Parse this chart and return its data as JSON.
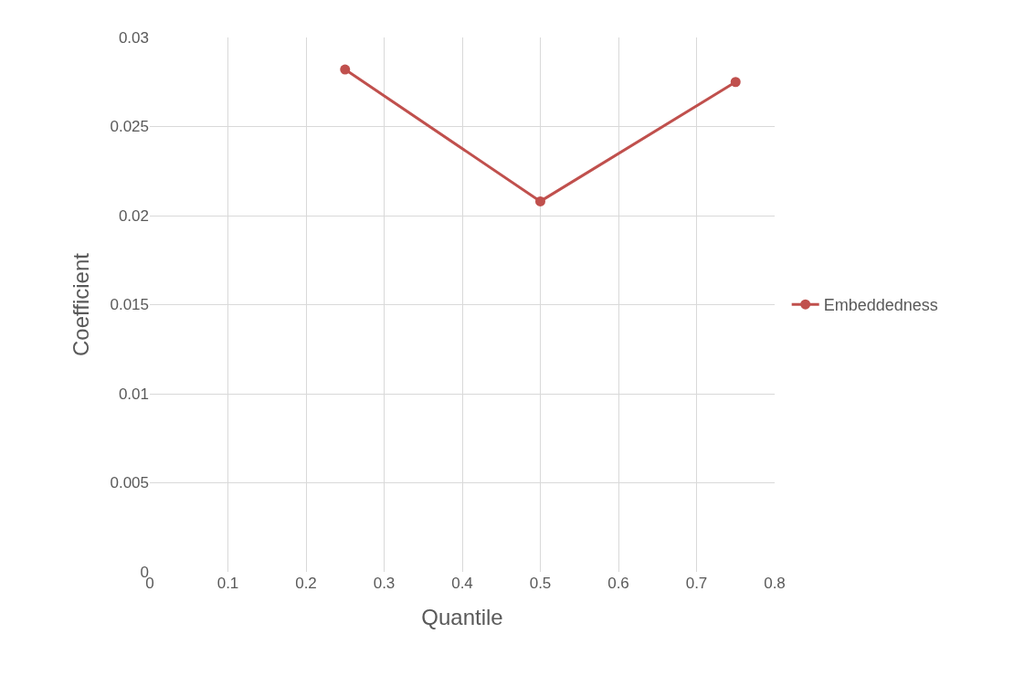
{
  "chart_data": {
    "type": "line",
    "xlabel": "Quantile",
    "ylabel": "Coefficient",
    "x": [
      0.25,
      0.5,
      0.75
    ],
    "series": [
      {
        "name": "Embeddedness",
        "color": "#c0504d",
        "values": [
          0.0282,
          0.0208,
          0.0275
        ]
      }
    ],
    "xlim": [
      0,
      0.8
    ],
    "xticks": [
      0,
      0.1,
      0.2,
      0.3,
      0.4,
      0.5,
      0.6,
      0.7,
      0.8
    ],
    "ylim": [
      0,
      0.03
    ],
    "yticks": [
      0,
      0.005,
      0.01,
      0.015,
      0.02,
      0.025,
      0.03
    ],
    "grid": true,
    "legend": "right",
    "marker": "circle",
    "line_style": "solid"
  }
}
